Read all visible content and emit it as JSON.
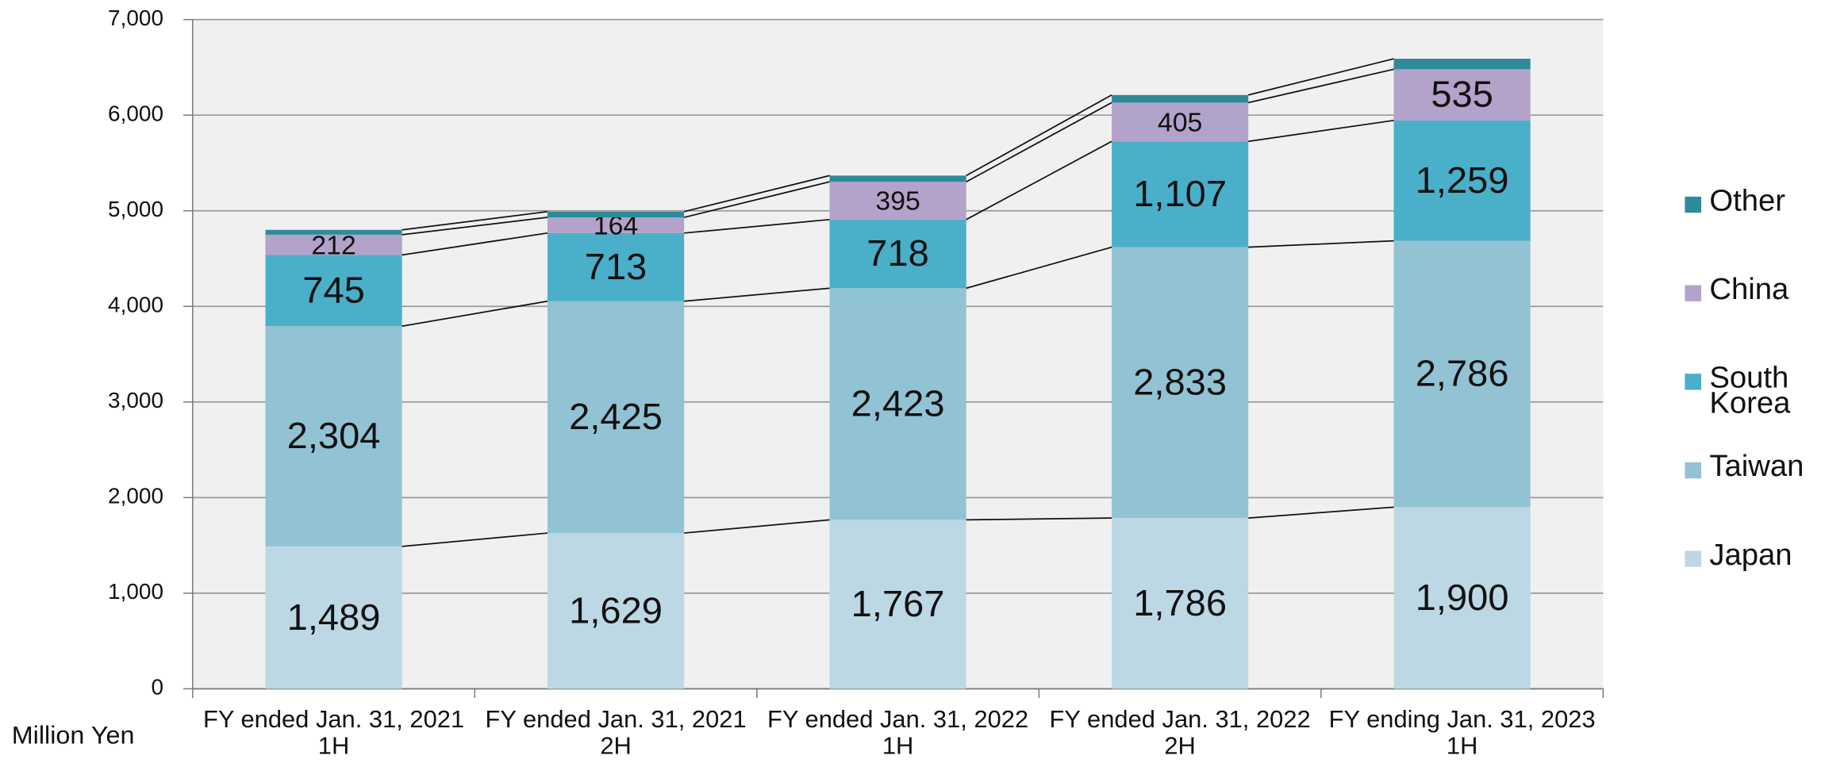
{
  "chart_data": {
    "type": "stacked-bar",
    "y_label": "Million Yen",
    "categories": [
      [
        "FY ended Jan. 31, 2021",
        "1H"
      ],
      [
        "FY ended Jan. 31, 2021",
        "2H"
      ],
      [
        "FY ended Jan. 31, 2022",
        "1H"
      ],
      [
        "FY ended Jan. 31, 2022",
        "2H"
      ],
      [
        "FY ending Jan. 31, 2023",
        "1H"
      ]
    ],
    "series": [
      {
        "name": "Japan",
        "color": "#bcd8e4",
        "values": [
          1489,
          1629,
          1767,
          1786,
          1900
        ],
        "value_labels": [
          "1,489",
          "1,629",
          "1,767",
          "1,786",
          "1,900"
        ]
      },
      {
        "name": "Taiwan",
        "color": "#92c3d4",
        "values": [
          2304,
          2425,
          2423,
          2833,
          2786
        ],
        "value_labels": [
          "2,304",
          "2,425",
          "2,423",
          "2,833",
          "2,786"
        ]
      },
      {
        "name": "South Korea",
        "color": "#4aafc8",
        "values": [
          745,
          713,
          718,
          1107,
          1259
        ],
        "value_labels": [
          "745",
          "713",
          "718",
          "1,107",
          "1,259"
        ]
      },
      {
        "name": "China",
        "color": "#b3a2c9",
        "values": [
          212,
          164,
          395,
          405,
          535
        ],
        "value_labels": [
          "212",
          "164",
          "395",
          "405",
          "535"
        ]
      },
      {
        "name": "Other",
        "color": "#2e8a9a",
        "values": [
          50,
          60,
          65,
          80,
          110
        ]
      }
    ],
    "ylim": [
      0,
      7000
    ],
    "yticks": [
      0,
      {
        "value": 1000,
        "label": "1,000"
      },
      {
        "value": 2000,
        "label": "2,000"
      },
      {
        "value": 3000,
        "label": "3,000"
      },
      {
        "value": 4000,
        "label": "4,000"
      },
      {
        "value": 5000,
        "label": "5,000"
      },
      {
        "value": 6000,
        "label": "6,000"
      },
      {
        "value": 7000,
        "label": "7,000"
      }
    ],
    "grid": true,
    "legend": "right",
    "connector_lines": true
  }
}
